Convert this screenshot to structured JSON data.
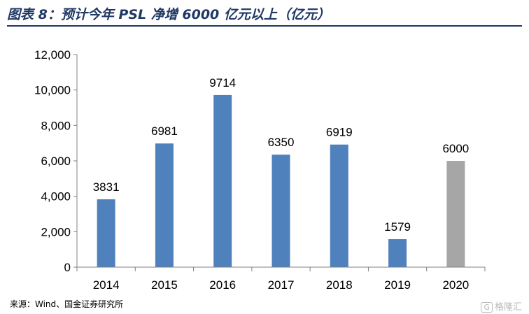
{
  "title": "图表 8：预计今年 PSL 净增 6000 亿元以上（亿元）",
  "source": "来源：Wind、国金证券研究所",
  "watermark": "格隆汇",
  "watermark_icon": "g-logo-icon",
  "colors": {
    "bar_main": "#4f81bd",
    "bar_forecast": "#a6a6a6",
    "title": "#1f3864"
  },
  "chart_data": {
    "type": "bar",
    "title": "",
    "xlabel": "",
    "ylabel": "",
    "categories": [
      "2014",
      "2015",
      "2016",
      "2017",
      "2018",
      "2019",
      "2020"
    ],
    "values": [
      3831,
      6981,
      9714,
      6350,
      6919,
      1579,
      6000
    ],
    "data_labels": [
      "3831",
      "6981",
      "9714",
      "6350",
      "6919",
      "1579",
      "6000"
    ],
    "highlight_index": 6,
    "ylim": [
      0,
      12000
    ],
    "yticks": [
      0,
      2000,
      4000,
      6000,
      8000,
      10000,
      12000
    ],
    "ytick_labels": [
      "0",
      "2,000",
      "4,000",
      "6,000",
      "8,000",
      "10,000",
      "12,000"
    ],
    "grid": false,
    "legend": "none"
  }
}
